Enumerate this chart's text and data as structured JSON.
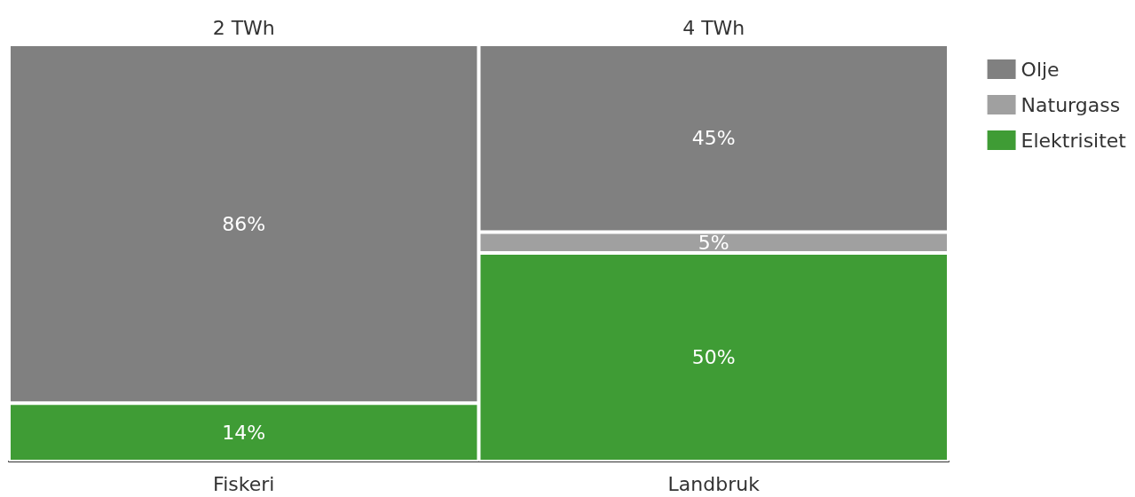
{
  "chart_data": {
    "type": "bar",
    "stacked": true,
    "legend": "top right",
    "categories": [
      "Fiskeri",
      "Landbruk"
    ],
    "ylim": [
      0,
      100
    ],
    "annotations": [
      "2 TWh",
      "4 TWh"
    ],
    "series": [
      {
        "name": "Elektrisitet",
        "color": "#3f9c35",
        "values": [
          14,
          50
        ],
        "value_labels": [
          "14%",
          "50%"
        ]
      },
      {
        "name": "Naturgass",
        "color": "#a0a0a0",
        "values": [
          null,
          5
        ],
        "value_labels": [
          null,
          "5%"
        ]
      },
      {
        "name": "Olje",
        "color": "#808080",
        "values": [
          86,
          45
        ],
        "value_labels": [
          "86%",
          "45%"
        ]
      }
    ]
  }
}
